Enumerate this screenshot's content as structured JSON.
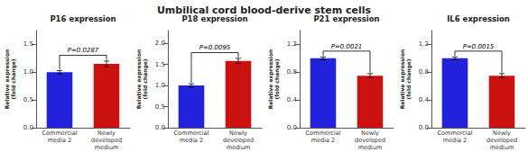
{
  "title": "Umbilical cord blood-derive stem cells",
  "chart_data": [
    {
      "type": "bar",
      "title": "P16 expression",
      "categories": [
        "Commercial\nmedia 2",
        "Newly\ndeveloped\nmedium"
      ],
      "values": [
        1.0,
        1.15
      ],
      "errors": [
        0.03,
        0.05
      ],
      "colors": [
        "#2222dd",
        "#cc1111"
      ],
      "ylabel": "Relative expression\n(fold change)",
      "ylim": [
        0,
        1.75
      ],
      "yticks": [
        {
          "value": 0,
          "label": "0.0"
        },
        0.5,
        {
          "value": 1,
          "label": "1.0"
        },
        1.5
      ],
      "annotations": [
        "P=0.0287"
      ],
      "grid": false
    },
    {
      "type": "bar",
      "title": "P18 expression",
      "categories": [
        "Commercial\nmedia 2",
        "Newly\ndeveloped\nmedium"
      ],
      "values": [
        1.0,
        1.58
      ],
      "errors": [
        0.04,
        0.06
      ],
      "colors": [
        "#2222dd",
        "#cc1111"
      ],
      "ylabel": "Relative expression\n(fold change)",
      "ylim": [
        0,
        2.3
      ],
      "yticks": [
        {
          "value": 0,
          "label": "0.0"
        },
        0.5,
        {
          "value": 1,
          "label": "1.0"
        },
        1.5,
        {
          "value": 2,
          "label": "2.0"
        }
      ],
      "annotations": [
        "P=0.0095"
      ],
      "grid": false
    },
    {
      "type": "bar",
      "title": "P21 expression",
      "categories": [
        "Commercial\nmedia 2",
        "Newly\ndeveloped\nmedium"
      ],
      "values": [
        1.0,
        0.75
      ],
      "errors": [
        0.02,
        0.03
      ],
      "colors": [
        "#2222dd",
        "#cc1111"
      ],
      "ylabel": "Relative expression\n(fold change)",
      "ylim": [
        0,
        1.4
      ],
      "yticks": [
        {
          "value": 0,
          "label": "0.0"
        },
        0.4,
        0.8,
        1.2
      ],
      "annotations": [
        "P=0.0021"
      ],
      "grid": false
    },
    {
      "type": "bar",
      "title": "IL6 expression",
      "categories": [
        "Commercial\nmedia 2",
        "Newly\ndeveloped\nmedium"
      ],
      "values": [
        1.0,
        0.75
      ],
      "errors": [
        0.02,
        0.03
      ],
      "colors": [
        "#2222dd",
        "#cc1111"
      ],
      "ylabel": "Relative expression\n(fold change)",
      "ylim": [
        0,
        1.4
      ],
      "yticks": [
        {
          "value": 0,
          "label": "0.0"
        },
        0.4,
        0.8,
        1.2
      ],
      "annotations": [
        "P=0.0015"
      ],
      "grid": false
    }
  ]
}
